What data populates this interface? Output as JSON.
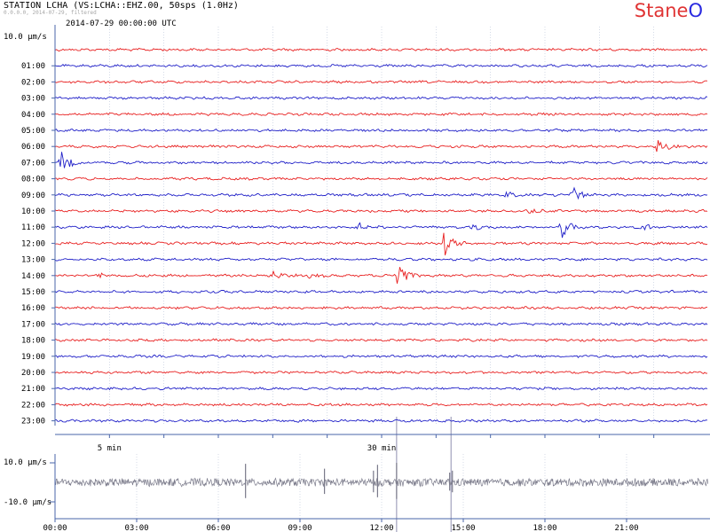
{
  "header": {
    "title": "STATION LCHA (VS:LCHA::EHZ.00, 50sps (1.0Hz)",
    "subtitle": "0.0.0.0, 2014-07-29, filtered",
    "date_label": "2014-07-29 00:00:00 UTC",
    "logo_main": "Stane",
    "logo_accent": "O"
  },
  "colors": {
    "red_trace": "#e82020",
    "blue_trace": "#2020c8",
    "grid": "#b8c4d8",
    "axis": "#4a66aa",
    "helper_axis": "#9aa0b8",
    "summary_trace": "#7a7a8a",
    "marker_line": "#9090b0"
  },
  "chart_data": [
    {
      "type": "line",
      "name": "helicorder",
      "scale_label": "10.0 µm/s",
      "rows": [
        {
          "label": "",
          "color": "red"
        },
        {
          "label": "01:00",
          "color": "blue"
        },
        {
          "label": "02:00",
          "color": "red"
        },
        {
          "label": "03:00",
          "color": "blue"
        },
        {
          "label": "04:00",
          "color": "red"
        },
        {
          "label": "05:00",
          "color": "blue"
        },
        {
          "label": "06:00",
          "color": "red"
        },
        {
          "label": "07:00",
          "color": "blue"
        },
        {
          "label": "08:00",
          "color": "red"
        },
        {
          "label": "09:00",
          "color": "blue"
        },
        {
          "label": "10:00",
          "color": "red"
        },
        {
          "label": "11:00",
          "color": "blue"
        },
        {
          "label": "12:00",
          "color": "red"
        },
        {
          "label": "13:00",
          "color": "blue"
        },
        {
          "label": "14:00",
          "color": "red"
        },
        {
          "label": "15:00",
          "color": "blue"
        },
        {
          "label": "16:00",
          "color": "red"
        },
        {
          "label": "17:00",
          "color": "blue"
        },
        {
          "label": "18:00",
          "color": "red"
        },
        {
          "label": "19:00",
          "color": "blue"
        },
        {
          "label": "20:00",
          "color": "red"
        },
        {
          "label": "21:00",
          "color": "blue"
        },
        {
          "label": "22:00",
          "color": "red"
        },
        {
          "label": "23:00",
          "color": "blue"
        }
      ],
      "x_minutes_range": [
        0,
        60
      ],
      "x_tick_labels": [
        {
          "minute": 5,
          "label": "5 min"
        },
        {
          "minute": 30,
          "label": "30 min"
        }
      ],
      "events": [
        {
          "row": 6,
          "minute": 55.4,
          "amplitude": 0.9
        },
        {
          "row": 7,
          "minute": 0.6,
          "amplitude": 1.3
        },
        {
          "row": 9,
          "minute": 41.5,
          "amplitude": 0.3
        },
        {
          "row": 9,
          "minute": 47.6,
          "amplitude": 1.0
        },
        {
          "row": 10,
          "minute": 43.6,
          "amplitude": 0.3
        },
        {
          "row": 11,
          "minute": 28.0,
          "amplitude": 0.4
        },
        {
          "row": 11,
          "minute": 38.5,
          "amplitude": 0.3
        },
        {
          "row": 11,
          "minute": 46.6,
          "amplitude": 1.3
        },
        {
          "row": 11,
          "minute": 54.1,
          "amplitude": 0.4
        },
        {
          "row": 12,
          "minute": 35.8,
          "amplitude": 1.6
        },
        {
          "row": 14,
          "minute": 4.0,
          "amplitude": 0.3
        },
        {
          "row": 14,
          "minute": 20.1,
          "amplitude": 0.6
        },
        {
          "row": 14,
          "minute": 23.5,
          "amplitude": 0.3
        },
        {
          "row": 14,
          "minute": 31.5,
          "amplitude": 2.0
        }
      ]
    },
    {
      "type": "line",
      "name": "daily-summary",
      "y_labels": [
        "10.0 µm/s",
        "-10.0 µm/s"
      ],
      "ylim": [
        -10.0,
        10.0
      ],
      "x_hours_range": [
        0,
        24
      ],
      "x_tick_labels": [
        "00:00",
        "03:00",
        "06:00",
        "09:00",
        "12:00",
        "15:00",
        "18:00",
        "21:00"
      ],
      "spikes": [
        {
          "hour": 7.0,
          "amplitude": 9.5
        },
        {
          "hour": 9.9,
          "amplitude": 7.0
        },
        {
          "hour": 11.7,
          "amplitude": 6.0
        },
        {
          "hour": 11.85,
          "amplitude": 9.0
        },
        {
          "hour": 12.55,
          "amplitude": 10.0
        },
        {
          "hour": 14.5,
          "amplitude": 5.0
        },
        {
          "hour": 14.6,
          "amplitude": 6.0
        }
      ],
      "markers_hours": [
        12.55,
        14.55
      ]
    }
  ]
}
